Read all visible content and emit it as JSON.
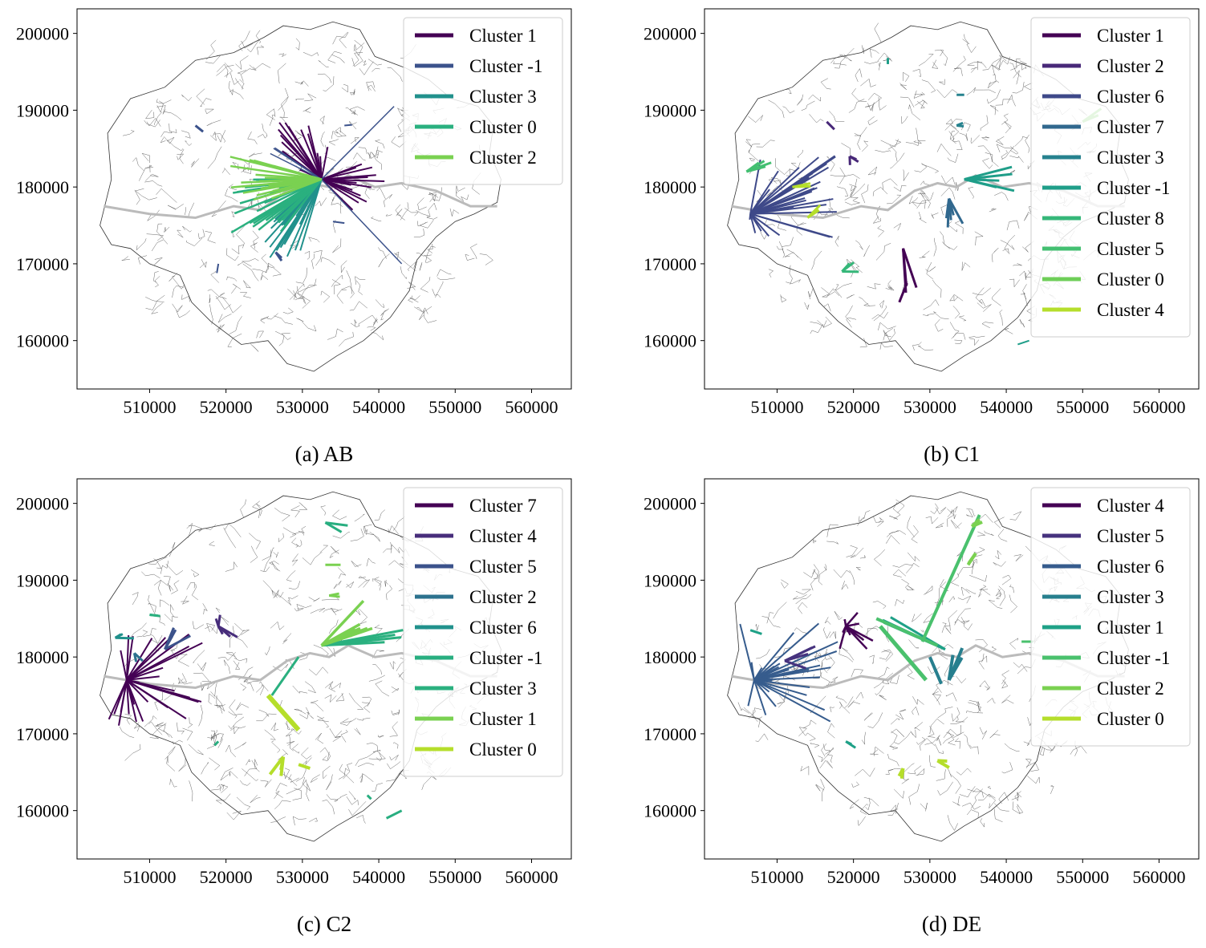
{
  "panels": [
    {
      "caption": "(a) AB",
      "xticks": [
        "510000",
        "520000",
        "530000",
        "540000",
        "550000",
        "560000"
      ],
      "yticks": [
        "200000",
        "190000",
        "180000",
        "170000",
        "160000"
      ],
      "legend": [
        "Cluster 1",
        "Cluster -1",
        "Cluster 3",
        "Cluster 0",
        "Cluster 2"
      ],
      "colors": [
        "#440154",
        "#3b528b",
        "#21918c",
        "#2ab07f",
        "#7ad151"
      ],
      "flows": [
        {
          "c": 0,
          "from": [
            532500,
            181000
          ],
          "to": [
            530000,
            185000
          ],
          "n": 18,
          "spread": 3500,
          "w": 2
        },
        {
          "c": 0,
          "from": [
            532500,
            181000
          ],
          "to": [
            538500,
            180000
          ],
          "n": 14,
          "spread": 3000,
          "w": 2
        },
        {
          "c": 1,
          "from": [
            532500,
            181000
          ],
          "to": [
            543000,
            170000
          ],
          "n": 1,
          "spread": 0,
          "w": 1.5
        },
        {
          "c": 1,
          "from": [
            532500,
            181000
          ],
          "to": [
            542000,
            190500
          ],
          "n": 1,
          "spread": 0,
          "w": 1.5
        },
        {
          "c": 1,
          "from": [
            532500,
            181000
          ],
          "to": [
            526000,
            184500
          ],
          "n": 3,
          "spread": 800,
          "w": 1.5
        },
        {
          "c": 2,
          "from": [
            532500,
            181000
          ],
          "to": [
            527500,
            173500
          ],
          "n": 22,
          "spread": 3000,
          "w": 2
        },
        {
          "c": 3,
          "from": [
            532500,
            181000
          ],
          "to": [
            524000,
            177500
          ],
          "n": 22,
          "spread": 3500,
          "w": 2.5
        },
        {
          "c": 4,
          "from": [
            532500,
            181000
          ],
          "to": [
            523500,
            181000
          ],
          "n": 18,
          "spread": 3000,
          "w": 2.5
        },
        {
          "c": 1,
          "from": [
            516000,
            188000
          ],
          "to": [
            517000,
            187200
          ],
          "n": 1,
          "spread": 0,
          "w": 3
        },
        {
          "c": 1,
          "from": [
            526500,
            171500
          ],
          "to": [
            527500,
            170500
          ],
          "n": 2,
          "spread": 300,
          "w": 3
        },
        {
          "c": 1,
          "from": [
            519000,
            170000
          ],
          "to": [
            518800,
            168800
          ],
          "n": 1,
          "spread": 0,
          "w": 2
        },
        {
          "c": 1,
          "from": [
            534000,
            175500
          ],
          "to": [
            535500,
            175300
          ],
          "n": 1,
          "spread": 0,
          "w": 2
        },
        {
          "c": 1,
          "from": [
            535500,
            188000
          ],
          "to": [
            536500,
            188100
          ],
          "n": 1,
          "spread": 0,
          "w": 2
        }
      ]
    },
    {
      "caption": "(b) C1",
      "xticks": [
        "510000",
        "520000",
        "530000",
        "540000",
        "550000",
        "560000"
      ],
      "yticks": [
        "200000",
        "190000",
        "180000",
        "170000",
        "160000"
      ],
      "legend": [
        "Cluster 1",
        "Cluster 2",
        "Cluster 6",
        "Cluster 7",
        "Cluster 3",
        "Cluster -1",
        "Cluster 8",
        "Cluster 5",
        "Cluster 0",
        "Cluster 4"
      ],
      "colors": [
        "#440154",
        "#482878",
        "#3e4989",
        "#31688e",
        "#26828e",
        "#1f9e89",
        "#35b779",
        "#43bf71",
        "#6ece58",
        "#b5de2b"
      ],
      "flows": [
        {
          "c": 2,
          "from": [
            506500,
            176500
          ],
          "to": [
            512000,
            178500
          ],
          "n": 30,
          "spread": 6000,
          "w": 2
        },
        {
          "c": 0,
          "from": [
            526500,
            172000
          ],
          "to": [
            527500,
            167000
          ],
          "n": 3,
          "spread": 800,
          "w": 3
        },
        {
          "c": 0,
          "from": [
            527000,
            167500
          ],
          "to": [
            526000,
            165000
          ],
          "n": 1,
          "spread": 0,
          "w": 3
        },
        {
          "c": 1,
          "from": [
            516500,
            188500
          ],
          "to": [
            517500,
            187500
          ],
          "n": 1,
          "spread": 0,
          "w": 3
        },
        {
          "c": 1,
          "from": [
            519500,
            184000
          ],
          "to": [
            520000,
            183500
          ],
          "n": 3,
          "spread": 1000,
          "w": 3
        },
        {
          "c": 3,
          "from": [
            532500,
            178500
          ],
          "to": [
            533500,
            176000
          ],
          "n": 5,
          "spread": 1500,
          "w": 3
        },
        {
          "c": 4,
          "from": [
            533500,
            188000
          ],
          "to": [
            534000,
            188400
          ],
          "n": 2,
          "spread": 500,
          "w": 3
        },
        {
          "c": 4,
          "from": [
            533500,
            192000
          ],
          "to": [
            534500,
            192000
          ],
          "n": 1,
          "spread": 0,
          "w": 3
        },
        {
          "c": 5,
          "from": [
            534500,
            181000
          ],
          "to": [
            539500,
            181500
          ],
          "n": 5,
          "spread": 2000,
          "w": 3
        },
        {
          "c": 5,
          "from": [
            524500,
            196000
          ],
          "to": [
            524500,
            196800
          ],
          "n": 1,
          "spread": 0,
          "w": 3
        },
        {
          "c": 5,
          "from": [
            541500,
            159500
          ],
          "to": [
            543000,
            160000
          ],
          "n": 1,
          "spread": 0,
          "w": 2
        },
        {
          "c": 6,
          "from": [
            518500,
            169000
          ],
          "to": [
            520000,
            169500
          ],
          "n": 3,
          "spread": 700,
          "w": 3
        },
        {
          "c": 7,
          "from": [
            506000,
            182000
          ],
          "to": [
            508500,
            182500
          ],
          "n": 4,
          "spread": 1200,
          "w": 3
        },
        {
          "c": 8,
          "from": [
            550000,
            188500
          ],
          "to": [
            552000,
            189500
          ],
          "n": 3,
          "spread": 800,
          "w": 3
        },
        {
          "c": 9,
          "from": [
            512000,
            180000
          ],
          "to": [
            514000,
            180000
          ],
          "n": 2,
          "spread": 500,
          "w": 3
        },
        {
          "c": 9,
          "from": [
            514000,
            176000
          ],
          "to": [
            515500,
            177500
          ],
          "n": 3,
          "spread": 800,
          "w": 3
        }
      ]
    },
    {
      "caption": "(c) C2",
      "xticks": [
        "510000",
        "520000",
        "530000",
        "540000",
        "550000",
        "560000"
      ],
      "yticks": [
        "200000",
        "190000",
        "180000",
        "170000",
        "160000"
      ],
      "legend": [
        "Cluster 7",
        "Cluster 4",
        "Cluster 5",
        "Cluster 2",
        "Cluster 6",
        "Cluster -1",
        "Cluster 3",
        "Cluster 1",
        "Cluster 0"
      ],
      "colors": [
        "#440154",
        "#472d7b",
        "#3b528b",
        "#2c728e",
        "#21918c",
        "#28ae80",
        "#2ab07f",
        "#7ad151",
        "#b5de2b"
      ],
      "flows": [
        {
          "c": 0,
          "from": [
            507000,
            177000
          ],
          "to": [
            511500,
            177000
          ],
          "n": 30,
          "spread": 7000,
          "w": 2
        },
        {
          "c": 1,
          "from": [
            519000,
            184000
          ],
          "to": [
            520500,
            183500
          ],
          "n": 6,
          "spread": 2000,
          "w": 3
        },
        {
          "c": 2,
          "from": [
            512000,
            181000
          ],
          "to": [
            514000,
            183500
          ],
          "n": 4,
          "spread": 1500,
          "w": 3
        },
        {
          "c": 3,
          "from": [
            508000,
            180500
          ],
          "to": [
            509000,
            180000
          ],
          "n": 2,
          "spread": 800,
          "w": 3
        },
        {
          "c": 4,
          "from": [
            505500,
            182500
          ],
          "to": [
            507000,
            182000
          ],
          "n": 3,
          "spread": 1200,
          "w": 3
        },
        {
          "c": 5,
          "from": [
            533000,
            197500
          ],
          "to": [
            535500,
            196500
          ],
          "n": 2,
          "spread": 800,
          "w": 3
        },
        {
          "c": 5,
          "from": [
            519000,
            169000
          ],
          "to": [
            518500,
            168500
          ],
          "n": 1,
          "spread": 0,
          "w": 3
        },
        {
          "c": 5,
          "from": [
            538500,
            162000
          ],
          "to": [
            539000,
            161500
          ],
          "n": 1,
          "spread": 0,
          "w": 3
        },
        {
          "c": 5,
          "from": [
            541000,
            159000
          ],
          "to": [
            543000,
            160000
          ],
          "n": 1,
          "spread": 0,
          "w": 3
        },
        {
          "c": 6,
          "from": [
            532500,
            181500
          ],
          "to": [
            542000,
            182500
          ],
          "n": 4,
          "spread": 1500,
          "w": 3
        },
        {
          "c": 6,
          "from": [
            510000,
            185500
          ],
          "to": [
            511500,
            185000
          ],
          "n": 2,
          "spread": 600,
          "w": 3
        },
        {
          "c": 6,
          "from": [
            529500,
            180000
          ],
          "to": [
            526000,
            175000
          ],
          "n": 1,
          "spread": 0,
          "w": 3
        },
        {
          "c": 7,
          "from": [
            532500,
            181500
          ],
          "to": [
            538000,
            185500
          ],
          "n": 6,
          "spread": 2000,
          "w": 3.5
        },
        {
          "c": 7,
          "from": [
            533500,
            188000
          ],
          "to": [
            534500,
            188000
          ],
          "n": 2,
          "spread": 500,
          "w": 3
        },
        {
          "c": 7,
          "from": [
            533000,
            192000
          ],
          "to": [
            535000,
            192000
          ],
          "n": 1,
          "spread": 0,
          "w": 3
        },
        {
          "c": 8,
          "from": [
            529500,
            170500
          ],
          "to": [
            525500,
            175000
          ],
          "n": 1,
          "spread": 0,
          "w": 6
        },
        {
          "c": 8,
          "from": [
            527500,
            167000
          ],
          "to": [
            526500,
            165000
          ],
          "n": 3,
          "spread": 800,
          "w": 4
        },
        {
          "c": 8,
          "from": [
            531000,
            165500
          ],
          "to": [
            529500,
            166000
          ],
          "n": 1,
          "spread": 0,
          "w": 4
        }
      ]
    },
    {
      "caption": "(d) DE",
      "xticks": [
        "510000",
        "520000",
        "530000",
        "540000",
        "550000",
        "560000"
      ],
      "yticks": [
        "200000",
        "190000",
        "180000",
        "170000",
        "160000"
      ],
      "legend": [
        "Cluster 4",
        "Cluster 5",
        "Cluster 6",
        "Cluster 3",
        "Cluster 1",
        "Cluster -1",
        "Cluster 2",
        "Cluster 0"
      ],
      "colors": [
        "#440154",
        "#46327e",
        "#365c8d",
        "#277f8e",
        "#1fa187",
        "#4ac16d",
        "#7ad151",
        "#b5de2b"
      ],
      "flows": [
        {
          "c": 0,
          "from": [
            519000,
            184000
          ],
          "to": [
            520500,
            183500
          ],
          "n": 10,
          "spread": 2500,
          "w": 2.5
        },
        {
          "c": 2,
          "from": [
            507000,
            177000
          ],
          "to": [
            511500,
            178000
          ],
          "n": 26,
          "spread": 6500,
          "w": 2
        },
        {
          "c": 1,
          "from": [
            511000,
            179500
          ],
          "to": [
            514500,
            180000
          ],
          "n": 4,
          "spread": 1500,
          "w": 3
        },
        {
          "c": 3,
          "from": [
            531500,
            176500
          ],
          "to": [
            530000,
            180000
          ],
          "n": 1,
          "spread": 0,
          "w": 4
        },
        {
          "c": 3,
          "from": [
            532500,
            177000
          ],
          "to": [
            533500,
            180500
          ],
          "n": 3,
          "spread": 800,
          "w": 4
        },
        {
          "c": 4,
          "from": [
            532000,
            181000
          ],
          "to": [
            524500,
            184500
          ],
          "n": 3,
          "spread": 800,
          "w": 3
        },
        {
          "c": 4,
          "from": [
            506500,
            183500
          ],
          "to": [
            508000,
            183000
          ],
          "n": 1,
          "spread": 0,
          "w": 3
        },
        {
          "c": 4,
          "from": [
            519000,
            169000
          ],
          "to": [
            520000,
            168500
          ],
          "n": 2,
          "spread": 600,
          "w": 3
        },
        {
          "c": 5,
          "from": [
            523500,
            184000
          ],
          "to": [
            529500,
            177000
          ],
          "n": 1,
          "spread": 0,
          "w": 5
        },
        {
          "c": 5,
          "from": [
            529000,
            182000
          ],
          "to": [
            536500,
            198500
          ],
          "n": 1,
          "spread": 0,
          "w": 4
        },
        {
          "c": 5,
          "from": [
            523000,
            185000
          ],
          "to": [
            531000,
            181500
          ],
          "n": 1,
          "spread": 0,
          "w": 4
        },
        {
          "c": 5,
          "from": [
            542000,
            182000
          ],
          "to": [
            543500,
            182000
          ],
          "n": 1,
          "spread": 0,
          "w": 3
        },
        {
          "c": 6,
          "from": [
            536000,
            193500
          ],
          "to": [
            535000,
            192500
          ],
          "n": 2,
          "spread": 700,
          "w": 4
        },
        {
          "c": 6,
          "from": [
            535500,
            197000
          ],
          "to": [
            536500,
            197500
          ],
          "n": 2,
          "spread": 600,
          "w": 4
        },
        {
          "c": 7,
          "from": [
            531000,
            166500
          ],
          "to": [
            532000,
            166000
          ],
          "n": 3,
          "spread": 800,
          "w": 4
        },
        {
          "c": 7,
          "from": [
            526500,
            165500
          ],
          "to": [
            526000,
            164500
          ],
          "n": 2,
          "spread": 500,
          "w": 4
        }
      ]
    }
  ]
}
